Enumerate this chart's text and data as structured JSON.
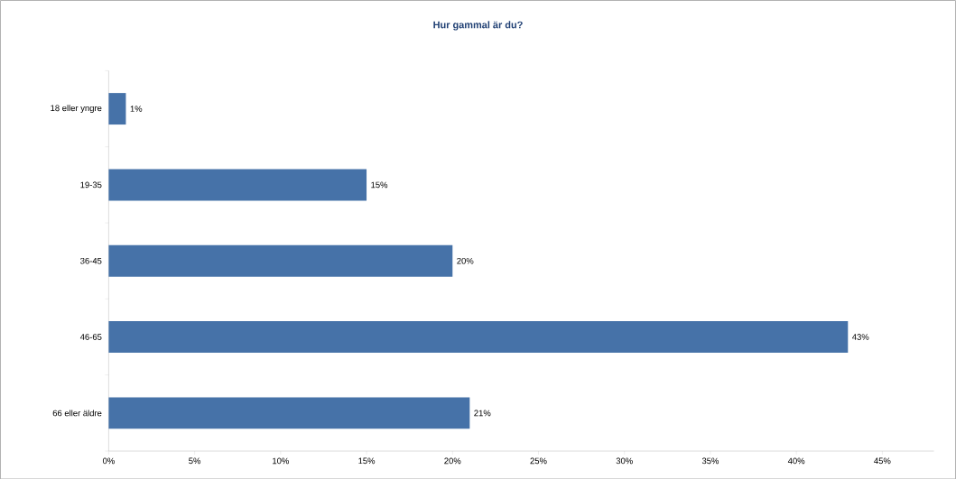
{
  "chart_data": {
    "type": "bar",
    "orientation": "horizontal",
    "title": "Hur gammal är du?",
    "categories": [
      "18 eller yngre",
      "19-35",
      "36-45",
      "46-65",
      "66 eller äldre"
    ],
    "values": [
      1,
      15,
      20,
      43,
      21
    ],
    "value_labels": [
      "1%",
      "15%",
      "20%",
      "43%",
      "21%"
    ],
    "color": "#4672a8",
    "xlim": [
      0,
      48
    ],
    "xticks": [
      {
        "value": 0,
        "label": "0%"
      },
      {
        "value": 5,
        "label": "5%"
      },
      {
        "value": 10,
        "label": "10%"
      },
      {
        "value": 15,
        "label": "15%"
      },
      {
        "value": 20,
        "label": "20%"
      },
      {
        "value": 25,
        "label": "25%"
      },
      {
        "value": 30,
        "label": "30%"
      },
      {
        "value": 35,
        "label": "35%"
      },
      {
        "value": 40,
        "label": "40%"
      },
      {
        "value": 45,
        "label": "45%"
      }
    ]
  }
}
